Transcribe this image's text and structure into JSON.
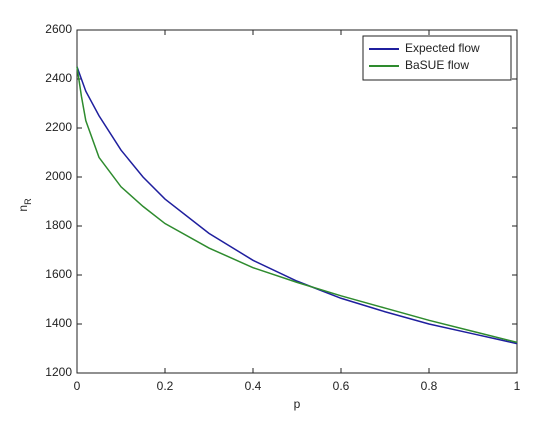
{
  "chart_data": {
    "type": "line",
    "x_label": "p",
    "y_label": "n",
    "y_label_subscript": "R",
    "x": [
      0,
      0.01,
      0.02,
      0.05,
      0.1,
      0.15,
      0.2,
      0.3,
      0.4,
      0.5,
      0.6,
      0.7,
      0.8,
      0.9,
      1
    ],
    "series": [
      {
        "name": "Expected flow",
        "color": "#1f1f9e",
        "values": [
          2450,
          2400,
          2350,
          2250,
          2110,
          2000,
          1910,
          1770,
          1660,
          1575,
          1505,
          1450,
          1400,
          1360,
          1320
        ]
      },
      {
        "name": "BaSUE flow",
        "color": "#2e8b2e",
        "values": [
          2450,
          2330,
          2230,
          2080,
          1960,
          1880,
          1810,
          1710,
          1630,
          1570,
          1515,
          1465,
          1415,
          1370,
          1325
        ]
      }
    ],
    "xlim": [
      0,
      1
    ],
    "xticks": [
      0,
      0.2,
      0.4,
      0.6,
      0.8,
      1
    ],
    "ylim": [
      1200,
      2600
    ],
    "yticks": [
      1200,
      1400,
      1600,
      1800,
      2000,
      2200,
      2400,
      2600
    ],
    "legend": "upper right"
  }
}
